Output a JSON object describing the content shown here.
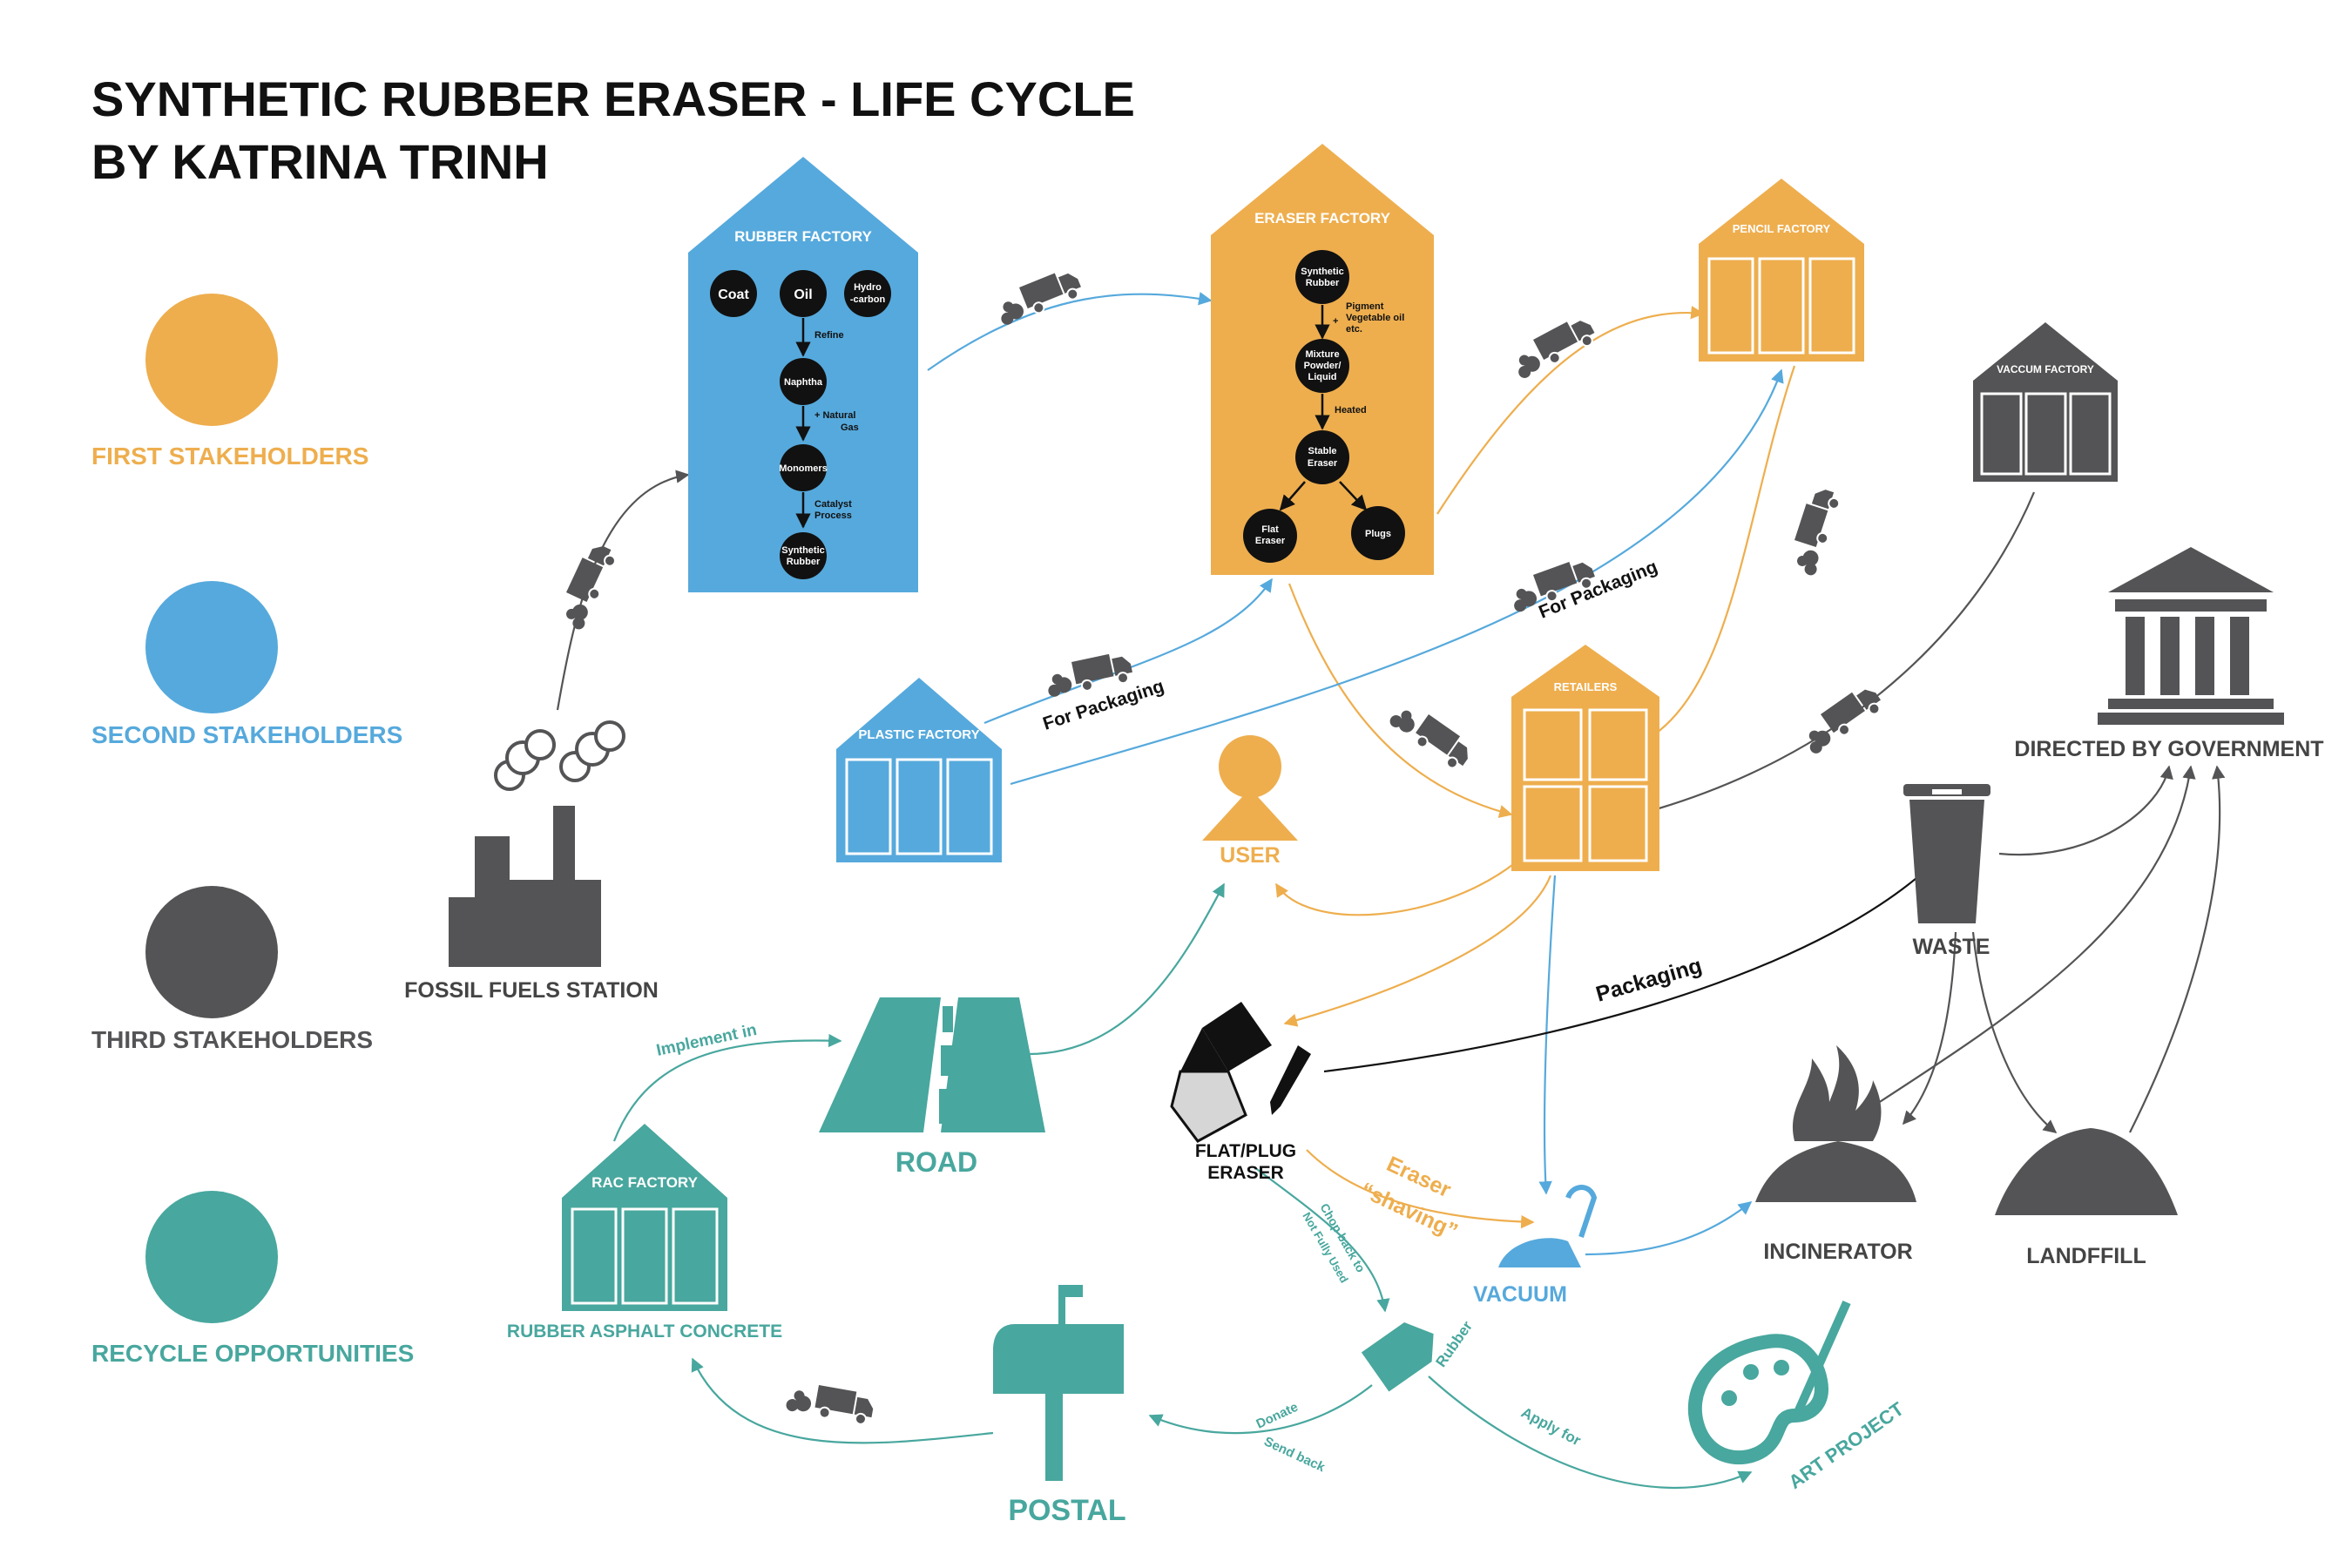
{
  "title": {
    "line1": "SYNTHETIC RUBBER ERASER - LIFE CYCLE",
    "line2": "BY KATRINA TRINH"
  },
  "colors": {
    "first": "#eeae4e",
    "second": "#56a9dc",
    "third": "#545456",
    "recycle": "#48a79e"
  },
  "legend": [
    {
      "label": "FIRST STAKEHOLDERS",
      "color": "#eeae4e"
    },
    {
      "label": "SECOND STAKEHOLDERS",
      "color": "#56a9dc"
    },
    {
      "label": "THIRD STAKEHOLDERS",
      "color": "#545456"
    },
    {
      "label": "RECYCLE OPPORTUNITIES",
      "color": "#48a79e"
    }
  ],
  "rubber_factory": {
    "title": "RUBBER FACTORY",
    "inputs": [
      "Coat",
      "Oil",
      "Hydro",
      "-carbon"
    ],
    "refine": "Refine",
    "naphtha": "Naphtha",
    "natural_gas": [
      "+ Natural",
      "Gas"
    ],
    "monomers": "Monomers",
    "catalyst": [
      "Catalyst",
      "Process"
    ],
    "output": [
      "Synthetic",
      "Rubber"
    ]
  },
  "eraser_factory": {
    "title": "ERASER FACTORY",
    "input": [
      "Synthetic",
      "Rubber"
    ],
    "pigment": [
      "Pigment",
      "Vegetable oil",
      "etc."
    ],
    "mixture": [
      "Mixture",
      "Powder/",
      "Liquid"
    ],
    "heated": "Heated",
    "stable": [
      "Stable",
      "Eraser"
    ],
    "flat": [
      "Flat",
      "Eraser"
    ],
    "plugs": "Plugs"
  },
  "factories": {
    "pencil": "PENCIL FACTORY",
    "vaccum": "VACCUM FACTORY",
    "retailers": "RETAILERS",
    "plastic": "PLASTIC FACTORY",
    "rac": "RAC FACTORY"
  },
  "nodes": {
    "fossil": "FOSSIL FUELS STATION",
    "government": "DIRECTED BY GOVERNMENT",
    "user": "USER",
    "waste": "WASTE",
    "incinerator": "INCINERATOR",
    "landfill": "LANDFFILL",
    "eraser": [
      "FLAT/PLUG",
      "ERASER"
    ],
    "vacuum": "VACUUM",
    "road": "ROAD",
    "rubber_asphalt": "RUBBER ASPHALT CONCRETE",
    "postal": "POSTAL",
    "art": "ART PROJECT",
    "rubber_piece": "Rubber"
  },
  "edges": {
    "for_packaging_1": "For Packaging",
    "for_packaging_2": "For Packaging",
    "packaging": "Packaging",
    "eraser_shaving": [
      "Eraser",
      "“shaving”"
    ],
    "implement_in": "Implement in",
    "chop_back": [
      "Chop back to",
      "Not Fully Used"
    ],
    "donate": [
      "Donate",
      "Send back"
    ],
    "apply_for": "Apply for"
  }
}
